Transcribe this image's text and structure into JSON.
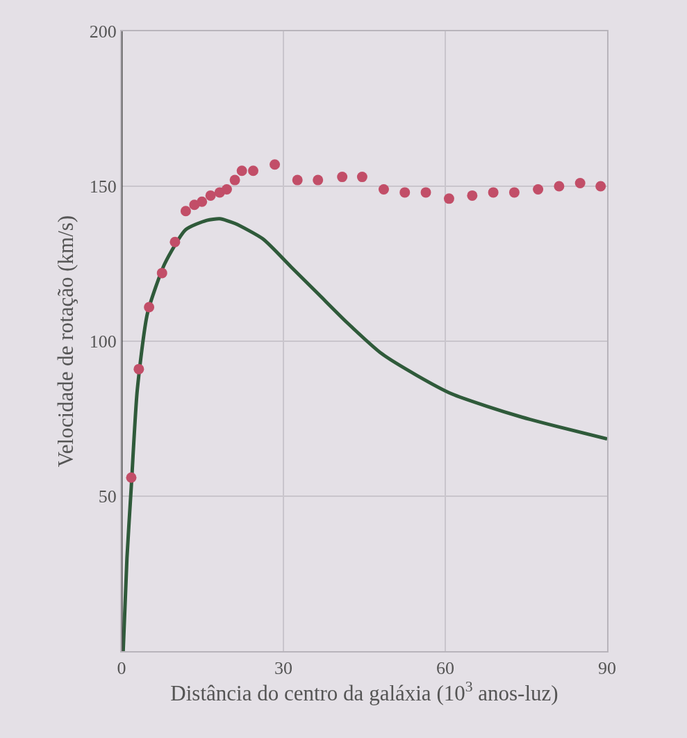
{
  "chart_data": {
    "type": "scatter",
    "xlabel": "Distância do centro da galáxia (10$^{3}$ anos-luz)",
    "ylabel": "Velocidade de rotação (km/s)",
    "xlim": [
      0,
      90
    ],
    "xticks": [
      0,
      30,
      60,
      90
    ],
    "ylim": [
      0,
      200
    ],
    "yticks": [
      50,
      100,
      150,
      200
    ],
    "grid": true,
    "marker": "circle",
    "series": [
      {
        "color": "#c24e68",
        "x": [
          1.8,
          3.2,
          5.1,
          7.5,
          9.9,
          11.9,
          13.5,
          14.9,
          16.5,
          18.2,
          19.5,
          21,
          22.3,
          24.4,
          28.4,
          32.6,
          36.4,
          40.9,
          44.6,
          48.6,
          52.5,
          56.4,
          60.7,
          65,
          68.9,
          72.8,
          77.2,
          81.1,
          85,
          88.8
        ],
        "values": [
          56,
          91,
          111,
          122,
          132,
          142,
          144,
          145,
          147,
          148,
          149,
          152,
          155,
          155,
          157,
          152,
          152,
          153,
          153,
          149,
          148,
          148,
          146,
          147,
          148,
          148,
          149,
          150,
          151,
          150
        ]
      },
      {
        "type": "line",
        "color": "#2f5a3a",
        "marker": "none",
        "x": [
          0.3,
          1.0,
          1.8,
          2.9,
          4.8,
          8,
          11.9,
          15.8,
          18.2,
          21,
          26.2,
          31.4,
          36.6,
          41.8,
          48.2,
          54.7,
          61.2,
          67.7,
          74.2,
          80.7,
          90
        ],
        "values": [
          0,
          30,
          53,
          84,
          109,
          125,
          136,
          139,
          139.5,
          138,
          133,
          124,
          115,
          106,
          96,
          89,
          83,
          79,
          75.5,
          72.5,
          68.5
        ]
      }
    ]
  }
}
